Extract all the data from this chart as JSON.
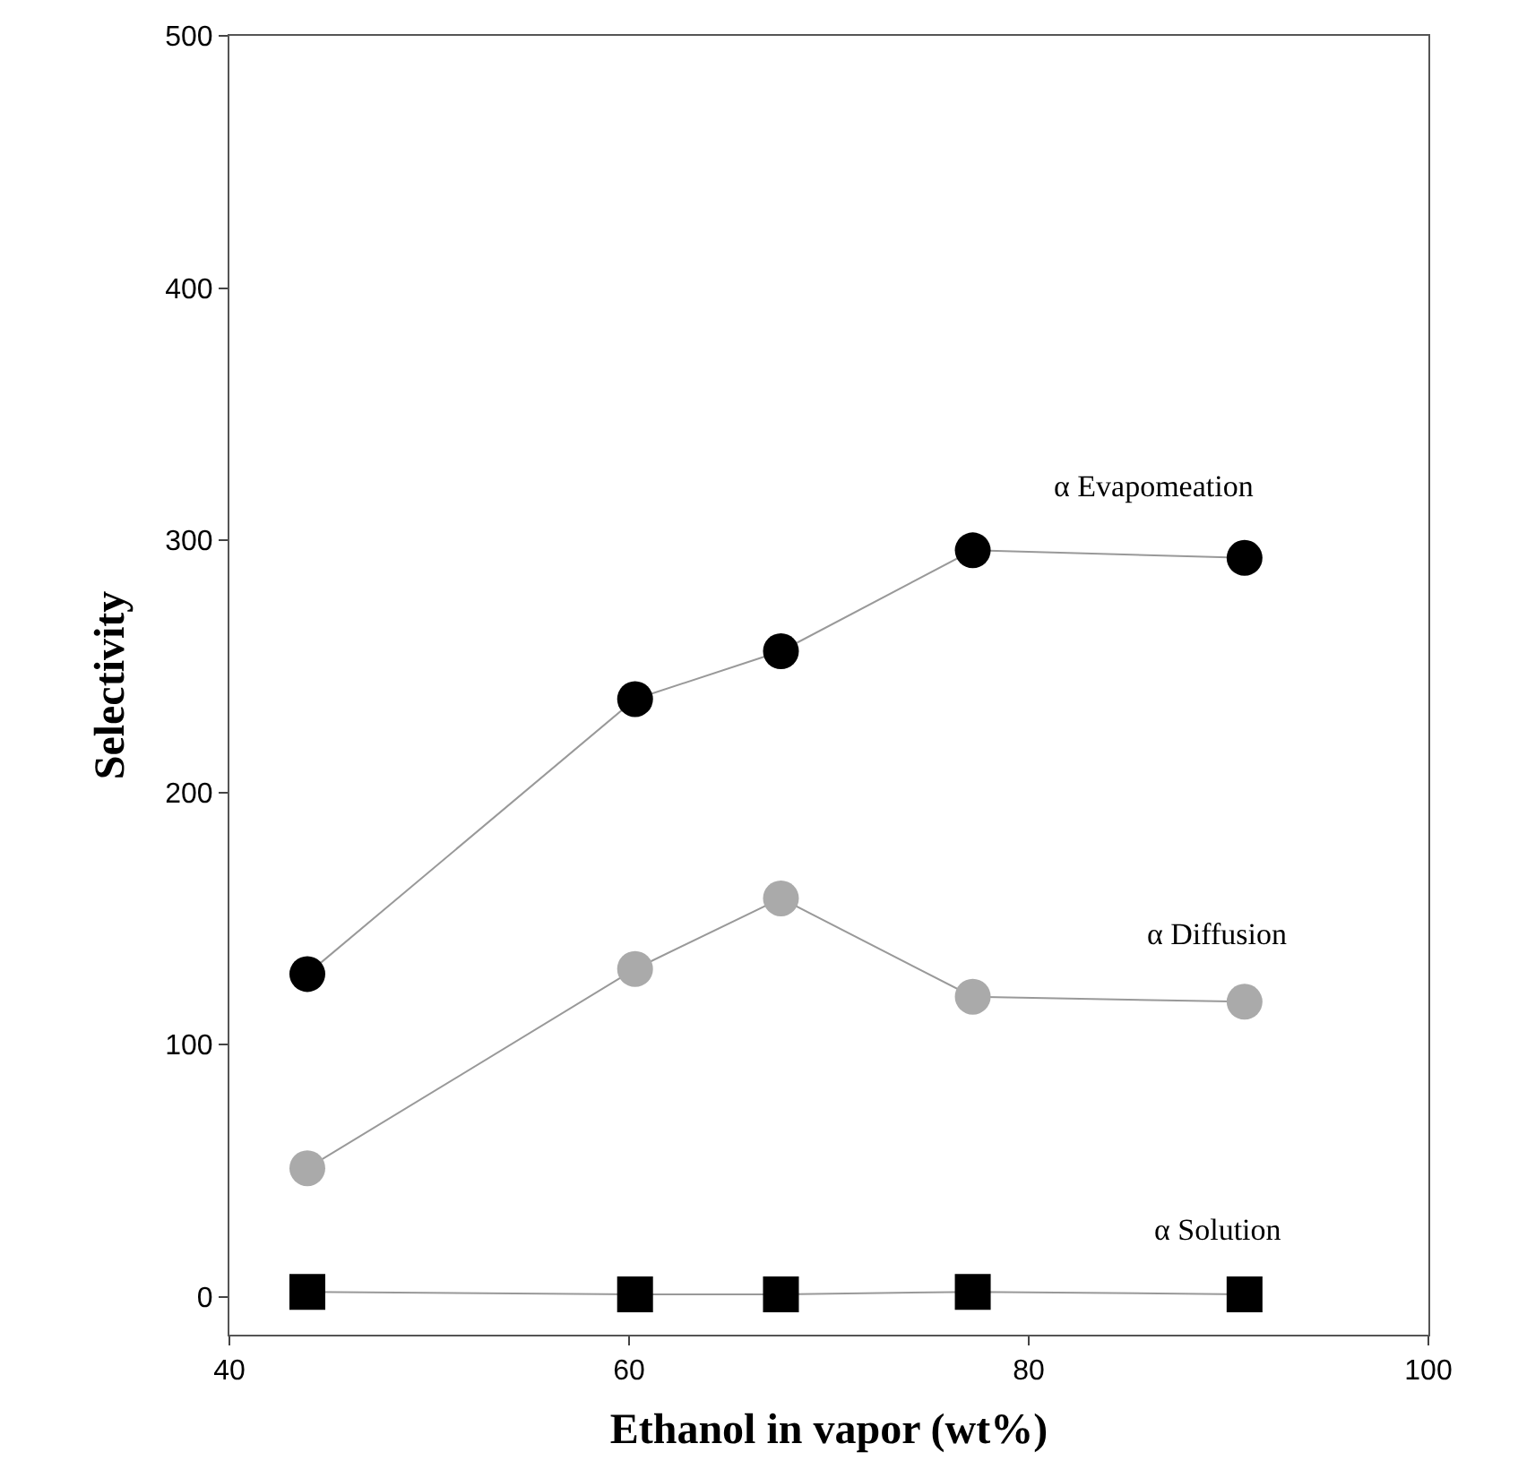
{
  "chart_data": {
    "type": "line",
    "xlabel": "Ethanol in vapor (wt%)",
    "ylabel": "Selectivity",
    "x": [
      43.9,
      60.3,
      67.6,
      77.2,
      90.8
    ],
    "series": [
      {
        "name": "α Evapomeation",
        "color": "#000000",
        "marker": "circle",
        "values": [
          128,
          237,
          256,
          296,
          293
        ]
      },
      {
        "name": "α Diffusion",
        "color": "#aaaaaa",
        "marker": "circle",
        "values": [
          51,
          130,
          158,
          119,
          117
        ]
      },
      {
        "name": "α Solution",
        "color": "#000000",
        "marker": "square",
        "values": [
          2,
          1,
          1,
          2,
          1
        ]
      }
    ],
    "xlim": [
      40,
      100
    ],
    "xticks": [
      40,
      60,
      80,
      100
    ],
    "ylim": [
      -15,
      500
    ],
    "yticks": [
      0,
      100,
      200,
      300,
      400,
      500
    ],
    "legend": false
  }
}
